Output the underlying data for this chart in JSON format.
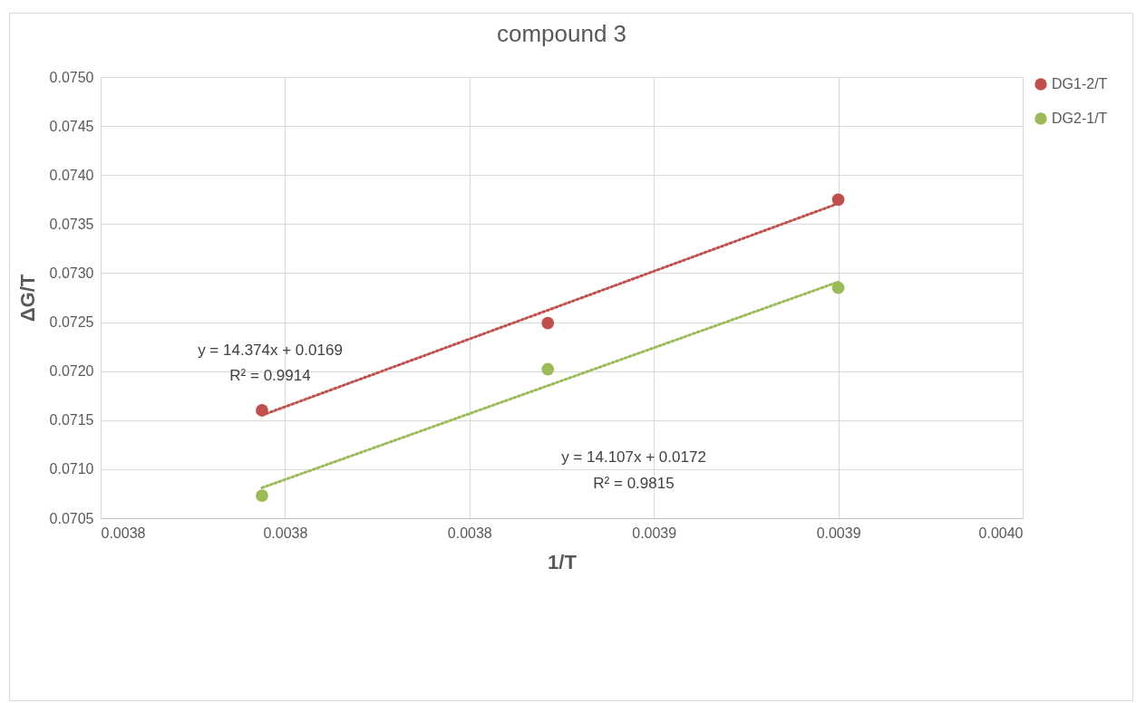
{
  "chart_data": {
    "type": "scatter",
    "title": "compound 3",
    "xlabel": "1/T",
    "ylabel": "ΔG/T",
    "series": [
      {
        "name": "DG1-2/T",
        "color": "#c0504d",
        "x": [
          0.003795,
          0.003857,
          0.00392
        ],
        "values": [
          0.0716,
          0.07249,
          0.07375
        ]
      },
      {
        "name": "DG2-1/T",
        "color": "#9bbb59",
        "x": [
          0.003795,
          0.003857,
          0.00392
        ],
        "values": [
          0.07073,
          0.07202,
          0.07285
        ]
      },
      {
        "type": "line",
        "color": "#c0504d",
        "line_style": "dotted",
        "marker": "none",
        "x": [
          0.003795,
          0.00392
        ],
        "values": [
          0.07155,
          0.07371
        ]
      },
      {
        "type": "line",
        "color": "#9bbb59",
        "line_style": "dotted",
        "marker": "none",
        "x": [
          0.003795,
          0.00392
        ],
        "values": [
          0.07081,
          0.07291
        ]
      }
    ],
    "xlim": [
      0.00376,
      0.00396
    ],
    "xticks": [
      {
        "value": 0.00376,
        "label": "0.0038"
      },
      {
        "value": 0.0038,
        "label": "0.0038"
      },
      {
        "value": 0.00384,
        "label": "0.0038"
      },
      {
        "value": 0.00388,
        "label": "0.0039"
      },
      {
        "value": 0.00392,
        "label": "0.0039"
      },
      {
        "value": 0.00396,
        "label": "0.0040"
      }
    ],
    "ylim": [
      0.0705,
      0.075
    ],
    "yticks": [
      {
        "value": 0.0705,
        "label": "0.0705"
      },
      {
        "value": 0.071,
        "label": "0.0710"
      },
      {
        "value": 0.0715,
        "label": "0.0715"
      },
      {
        "value": 0.072,
        "label": "0.0720"
      },
      {
        "value": 0.0725,
        "label": "0.0725"
      },
      {
        "value": 0.073,
        "label": "0.0730"
      },
      {
        "value": 0.0735,
        "label": "0.0735"
      },
      {
        "value": 0.074,
        "label": "0.0740"
      },
      {
        "value": 0.0745,
        "label": "0.0745"
      },
      {
        "value": 0.075,
        "label": "0.0750"
      }
    ],
    "annotations": [
      "y = 14.374x + 0.0169",
      "R² = 0.9914",
      "y = 14.107x + 0.0172",
      "R² = 0.9815"
    ],
    "grid": true,
    "legend": "right",
    "marker": "circle"
  }
}
